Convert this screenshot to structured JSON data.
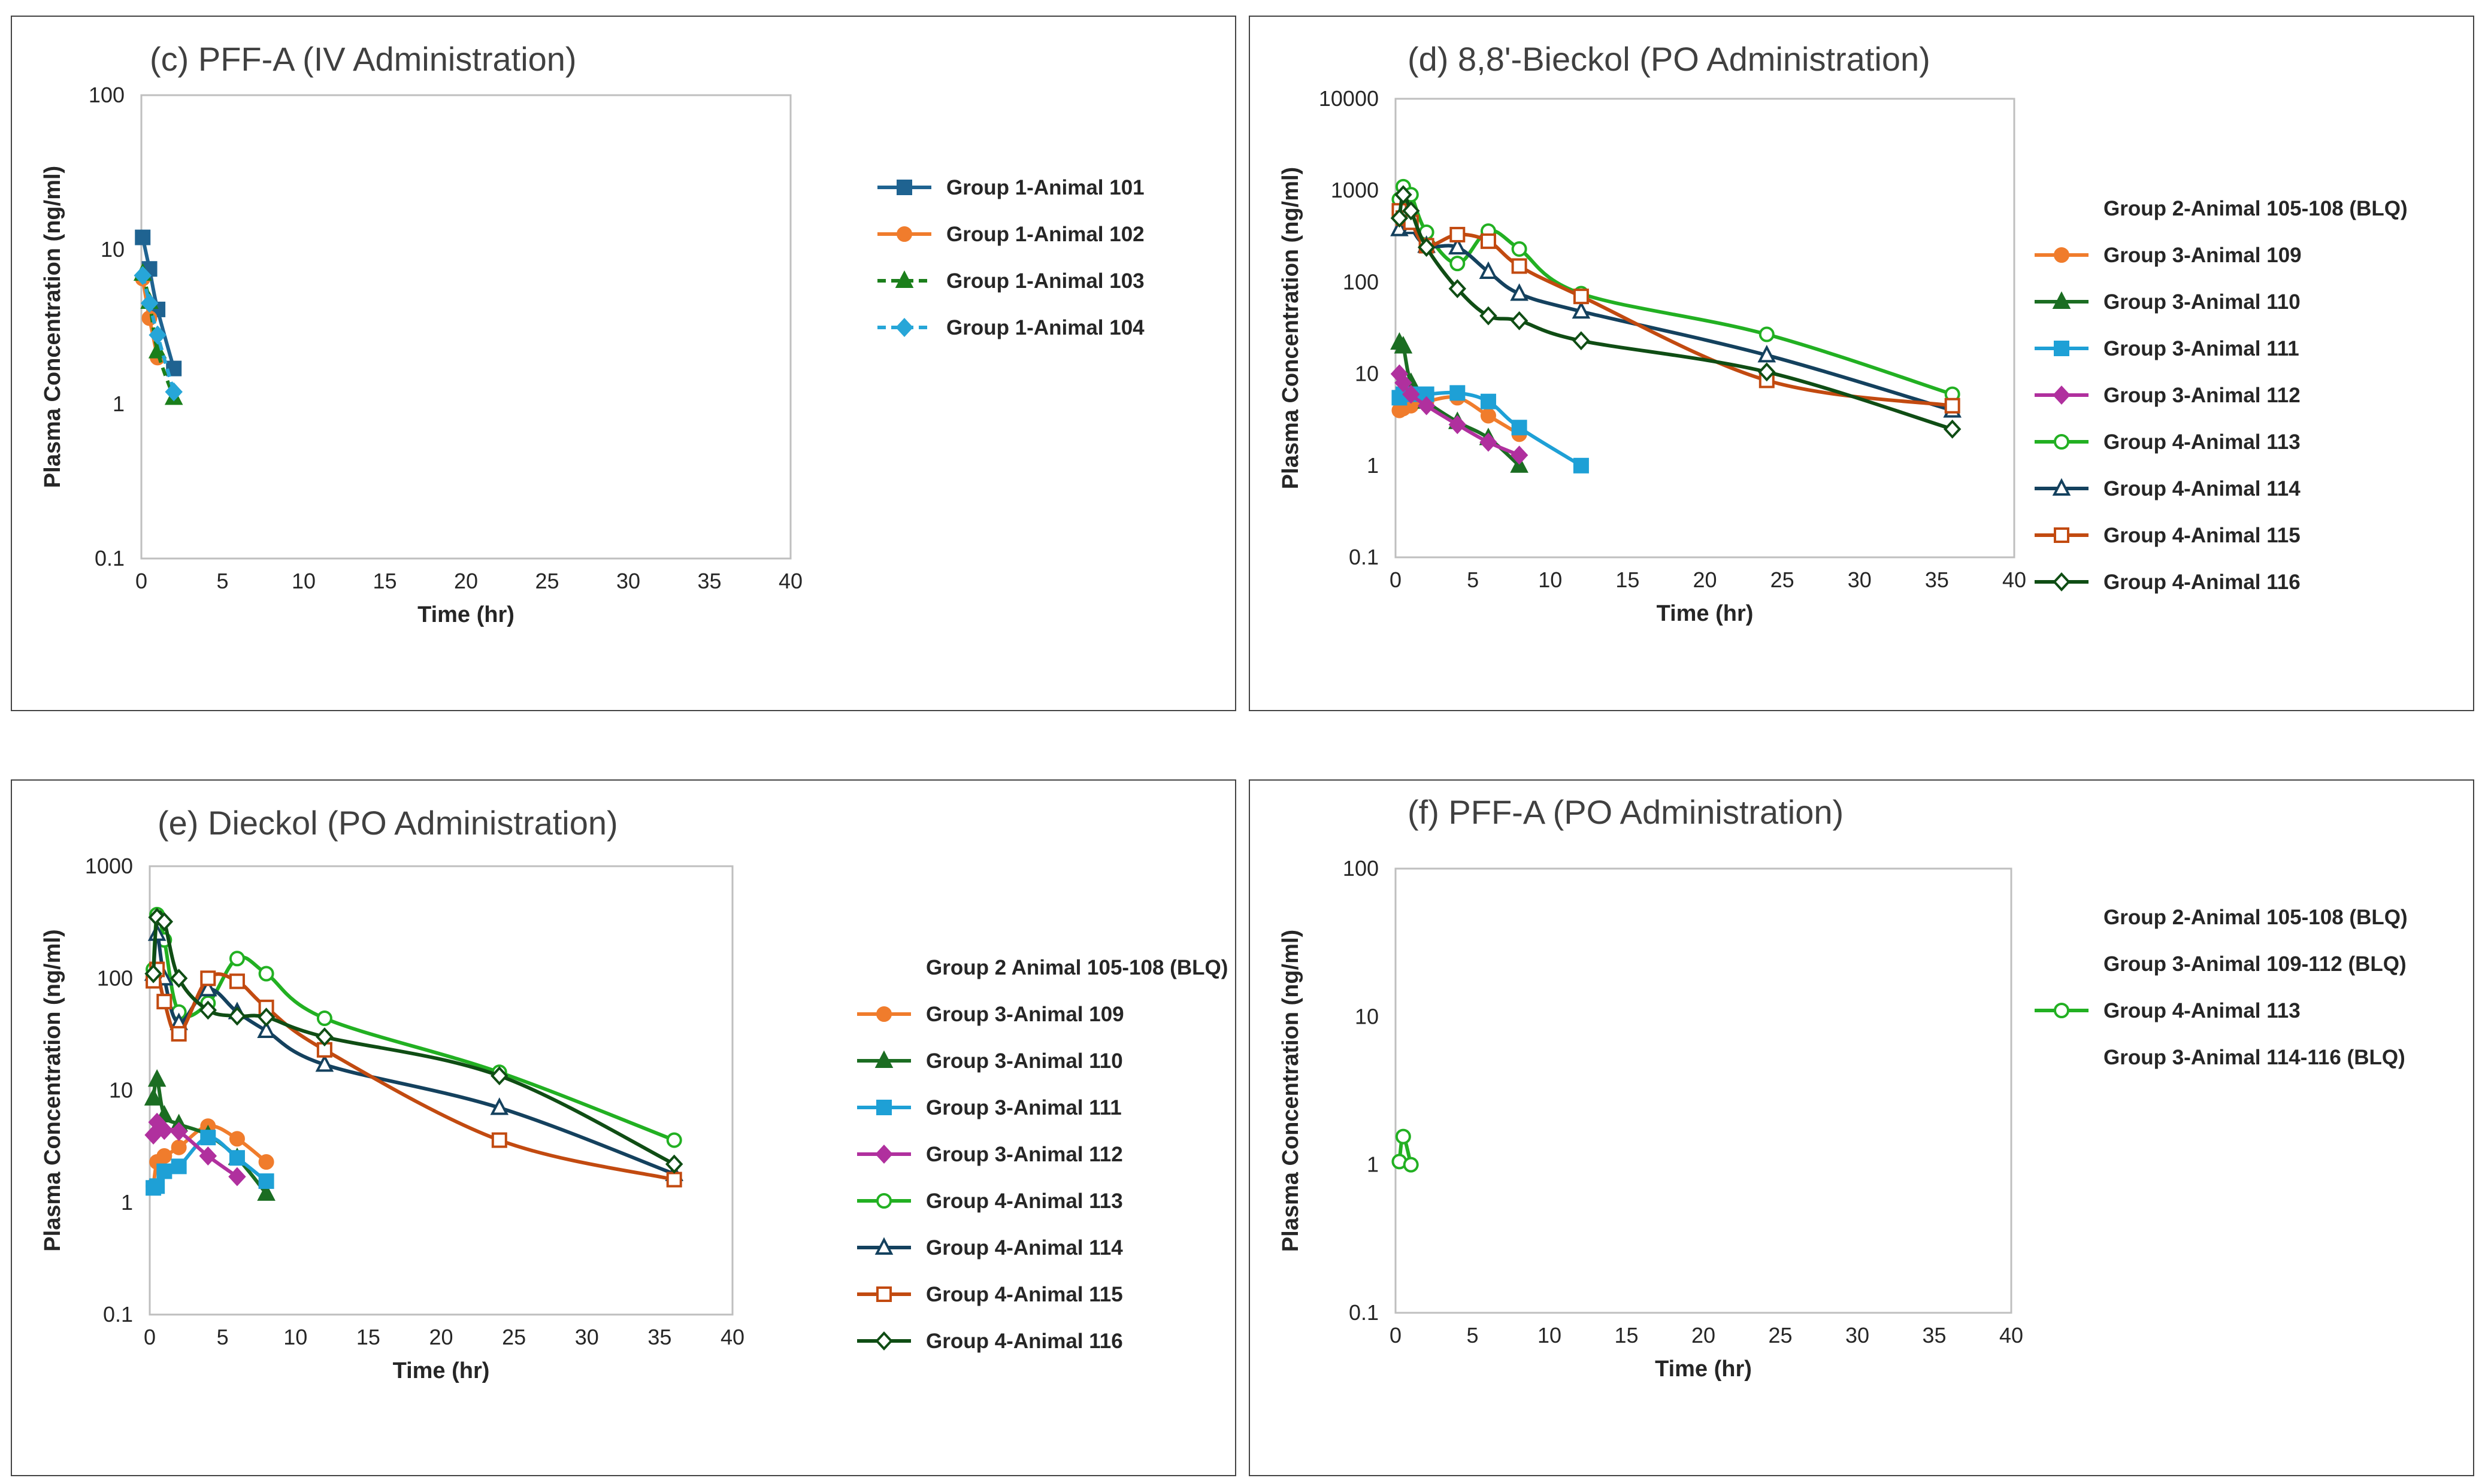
{
  "chart_data": [
    {
      "type": "line",
      "title": "(c) PFF-A (IV Administration)",
      "xlabel": "Time (hr)",
      "ylabel": "Plasma Concentration (ng/ml)",
      "xlim": [
        0,
        40
      ],
      "ylim": [
        0.1,
        100
      ],
      "yscale": "log",
      "xticks": [
        "0",
        "5",
        "10",
        "15",
        "20",
        "25",
        "30",
        "35",
        "40"
      ],
      "yticks": [
        "0.1",
        "1",
        "10",
        "100"
      ],
      "legend_position": "right",
      "series": [
        {
          "name": "Group 1-Animal 101",
          "color": "#1f6391",
          "marker": "square",
          "filled": true,
          "dash": false,
          "x": [
            0.083,
            0.5,
            1,
            2
          ],
          "y": [
            12,
            7.5,
            4.1,
            1.7
          ]
        },
        {
          "name": "Group 1-Animal 102",
          "color": "#f07c2c",
          "marker": "circle",
          "filled": true,
          "dash": false,
          "x": [
            0.083,
            0.5,
            1
          ],
          "y": [
            6.5,
            3.6,
            2.0
          ]
        },
        {
          "name": "Group 1-Animal 103",
          "color": "#1b7f1b",
          "marker": "triangle",
          "filled": true,
          "dash": true,
          "x": [
            0.083,
            0.5,
            1,
            2
          ],
          "y": [
            7.0,
            4.6,
            2.2,
            1.1
          ]
        },
        {
          "name": "Group 1-Animal 104",
          "color": "#27a6d8",
          "marker": "diamond",
          "filled": true,
          "dash": true,
          "x": [
            0.083,
            0.5,
            1,
            2
          ],
          "y": [
            6.8,
            4.5,
            2.8,
            1.2
          ]
        }
      ]
    },
    {
      "type": "line",
      "title": "(d) 8,8'-Bieckol (PO Administration)",
      "xlabel": "Time (hr)",
      "ylabel": "Plasma Concentration (ng/ml)",
      "xlim": [
        0,
        40
      ],
      "ylim": [
        0.1,
        10000
      ],
      "yscale": "log",
      "xticks": [
        "0",
        "5",
        "10",
        "15",
        "20",
        "25",
        "30",
        "35",
        "40"
      ],
      "yticks": [
        "0.1",
        "1",
        "10",
        "100",
        "1000",
        "10000"
      ],
      "legend_position": "right",
      "legend_note": "Group 2-Animal 105-108 (BLQ)",
      "series": [
        {
          "name": "Group 3-Animal 109",
          "color": "#f07c2c",
          "marker": "circle",
          "filled": true,
          "x": [
            0.25,
            0.5,
            1,
            2,
            4,
            6,
            8
          ],
          "y": [
            4.0,
            4.2,
            4.5,
            5.0,
            5.5,
            3.5,
            2.2
          ]
        },
        {
          "name": "Group 3-Animal 110",
          "color": "#1b6d22",
          "marker": "triangle",
          "filled": true,
          "x": [
            0.25,
            0.5,
            1,
            2,
            4,
            6,
            8
          ],
          "y": [
            22,
            20,
            8,
            5,
            3.0,
            2.0,
            1.0
          ]
        },
        {
          "name": "Group 3-Animal 111",
          "color": "#1ea0d6",
          "marker": "square",
          "filled": true,
          "x": [
            0.25,
            0.5,
            1,
            2,
            4,
            6,
            8,
            12
          ],
          "y": [
            5.5,
            6.0,
            6.0,
            6.0,
            6.2,
            5.0,
            2.6,
            1.0
          ]
        },
        {
          "name": "Group 3-Animal 112",
          "color": "#b0309e",
          "marker": "diamond",
          "filled": true,
          "x": [
            0.25,
            0.5,
            1,
            2,
            4,
            6,
            8
          ],
          "y": [
            10,
            8,
            6,
            4.5,
            2.8,
            1.8,
            1.3
          ]
        },
        {
          "name": "Group 4-Animal 113",
          "color": "#22b022",
          "marker": "circle",
          "filled": false,
          "x": [
            0.25,
            0.5,
            1,
            2,
            4,
            6,
            8,
            12,
            24,
            36
          ],
          "y": [
            800,
            1100,
            900,
            350,
            160,
            360,
            230,
            75,
            27,
            6.0
          ]
        },
        {
          "name": "Group 4-Animal 114",
          "color": "#14415e",
          "marker": "triangle",
          "filled": false,
          "x": [
            0.25,
            0.5,
            1,
            2,
            4,
            6,
            8,
            12,
            24,
            36
          ],
          "y": [
            380,
            600,
            400,
            250,
            240,
            130,
            75,
            48,
            16,
            4.0
          ]
        },
        {
          "name": "Group 4-Animal 115",
          "color": "#c24a10",
          "marker": "square",
          "filled": false,
          "x": [
            0.25,
            0.5,
            1,
            2,
            4,
            6,
            8,
            12,
            24,
            36
          ],
          "y": [
            600,
            500,
            450,
            250,
            330,
            280,
            150,
            70,
            8.5,
            4.5
          ]
        },
        {
          "name": "Group 4-Animal 116",
          "color": "#0f4d14",
          "marker": "diamond",
          "filled": false,
          "x": [
            0.25,
            0.5,
            1,
            2,
            4,
            6,
            8,
            12,
            24,
            36
          ],
          "y": [
            500,
            900,
            600,
            240,
            85,
            43,
            38,
            23,
            10.5,
            2.5
          ]
        }
      ]
    },
    {
      "type": "line",
      "title": "(e) Dieckol (PO Administration)",
      "xlabel": "Time (hr)",
      "ylabel": "Plasma Concentration (ng/ml)",
      "xlim": [
        0,
        40
      ],
      "ylim": [
        0.1,
        1000
      ],
      "yscale": "log",
      "xticks": [
        "0",
        "5",
        "10",
        "15",
        "20",
        "25",
        "30",
        "35",
        "40"
      ],
      "yticks": [
        "0.1",
        "1",
        "10",
        "100",
        "1000"
      ],
      "legend_position": "right",
      "legend_note": "Group 2 Animal 105-108 (BLQ)",
      "series": [
        {
          "name": "Group 3-Animal 109",
          "color": "#f07c2c",
          "marker": "circle",
          "filled": true,
          "x": [
            0.25,
            0.5,
            1,
            2,
            4,
            6,
            8
          ],
          "y": [
            1.4,
            2.3,
            2.6,
            3.1,
            4.8,
            3.7,
            2.3
          ]
        },
        {
          "name": "Group 3-Animal 110",
          "color": "#1b6d22",
          "marker": "triangle",
          "filled": true,
          "x": [
            0.25,
            0.5,
            1,
            2,
            4,
            6,
            8
          ],
          "y": [
            8.5,
            12.5,
            6.0,
            5.0,
            4.0,
            2.5,
            1.2
          ]
        },
        {
          "name": "Group 3-Animal 111",
          "color": "#1ea0d6",
          "marker": "square",
          "filled": true,
          "x": [
            0.25,
            0.5,
            1,
            2,
            4,
            6,
            8
          ],
          "y": [
            1.35,
            1.4,
            1.9,
            2.1,
            3.8,
            2.5,
            1.55
          ]
        },
        {
          "name": "Group 3-Animal 112",
          "color": "#b0309e",
          "marker": "diamond",
          "filled": true,
          "x": [
            0.25,
            0.5,
            1,
            2,
            4,
            6
          ],
          "y": [
            4.0,
            5.2,
            4.4,
            4.3,
            2.6,
            1.7
          ]
        },
        {
          "name": "Group 4-Animal 113",
          "color": "#22b022",
          "marker": "circle",
          "filled": false,
          "x": [
            0.25,
            0.5,
            1,
            2,
            4,
            6,
            8,
            12,
            24,
            36
          ],
          "y": [
            120,
            370,
            220,
            50,
            60,
            150,
            110,
            44,
            14.5,
            3.6
          ]
        },
        {
          "name": "Group 4-Animal 114",
          "color": "#14415e",
          "marker": "triangle",
          "filled": false,
          "x": [
            0.25,
            0.5,
            1,
            2,
            4,
            6,
            8,
            12,
            24,
            36
          ],
          "y": [
            110,
            250,
            100,
            40,
            80,
            50,
            34,
            17,
            7.0,
            1.8
          ]
        },
        {
          "name": "Group 4-Animal 115",
          "color": "#c24a10",
          "marker": "square",
          "filled": false,
          "x": [
            0.25,
            0.5,
            1,
            2,
            4,
            6,
            8,
            12,
            24,
            36
          ],
          "y": [
            95,
            120,
            62,
            32,
            100,
            94,
            55,
            23,
            3.6,
            1.6
          ]
        },
        {
          "name": "Group 4-Animal 116",
          "color": "#0f4d14",
          "marker": "diamond",
          "filled": false,
          "x": [
            0.25,
            0.5,
            1,
            2,
            4,
            6,
            8,
            12,
            24,
            36
          ],
          "y": [
            110,
            350,
            320,
            100,
            52,
            46,
            45,
            30,
            13.5,
            2.2
          ]
        }
      ]
    },
    {
      "type": "line",
      "title": "(f) PFF-A (PO Administration)",
      "xlabel": "Time (hr)",
      "ylabel": "Plasma Concentration (ng/ml)",
      "xlim": [
        0,
        40
      ],
      "ylim": [
        0.1,
        100
      ],
      "yscale": "log",
      "xticks": [
        "0",
        "5",
        "10",
        "15",
        "20",
        "25",
        "30",
        "35",
        "40"
      ],
      "yticks": [
        "0.1",
        "1",
        "10",
        "100"
      ],
      "legend_position": "right",
      "legend_notes": [
        "Group 2-Animal 105-108 (BLQ)",
        "Group 3-Animal 109-112 (BLQ)"
      ],
      "legend_note_after": "Group 3-Animal 114-116 (BLQ)",
      "series": [
        {
          "name": "Group 4-Animal 113",
          "color": "#22b022",
          "marker": "circle",
          "filled": false,
          "x": [
            0.25,
            0.5,
            1
          ],
          "y": [
            1.05,
            1.55,
            1.0
          ]
        }
      ]
    }
  ]
}
